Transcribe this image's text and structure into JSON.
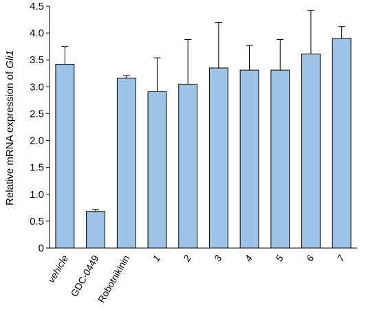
{
  "chart_data": {
    "type": "bar",
    "title": "",
    "xlabel": "",
    "ylabel_prefix": "Relative mRNA expression of ",
    "ylabel_italic": "Gli1",
    "ylim": [
      0,
      4.5
    ],
    "yticks": [
      "0",
      "0.5",
      "1.0",
      "1.5",
      "2.0",
      "2.5",
      "3.0",
      "3.5",
      "4.0",
      "4.5"
    ],
    "categories": [
      "vehicle",
      "GDC-0449",
      "Robotnikinin",
      "1",
      "2",
      "3",
      "4",
      "5",
      "6",
      "7"
    ],
    "italic_categories": [
      "vehicle",
      "1",
      "2",
      "3",
      "4",
      "5",
      "6",
      "7"
    ],
    "values": [
      3.42,
      0.68,
      3.16,
      2.91,
      3.05,
      3.35,
      3.31,
      3.31,
      3.61,
      3.9
    ],
    "error_upper": [
      0.33,
      0.04,
      0.05,
      0.63,
      0.83,
      0.85,
      0.46,
      0.57,
      0.81,
      0.22
    ],
    "grid": false,
    "legend": "none",
    "colors": {
      "bar_fill": "#9dc3e6",
      "bar_stroke": "#000000",
      "axis": "#000000"
    }
  }
}
